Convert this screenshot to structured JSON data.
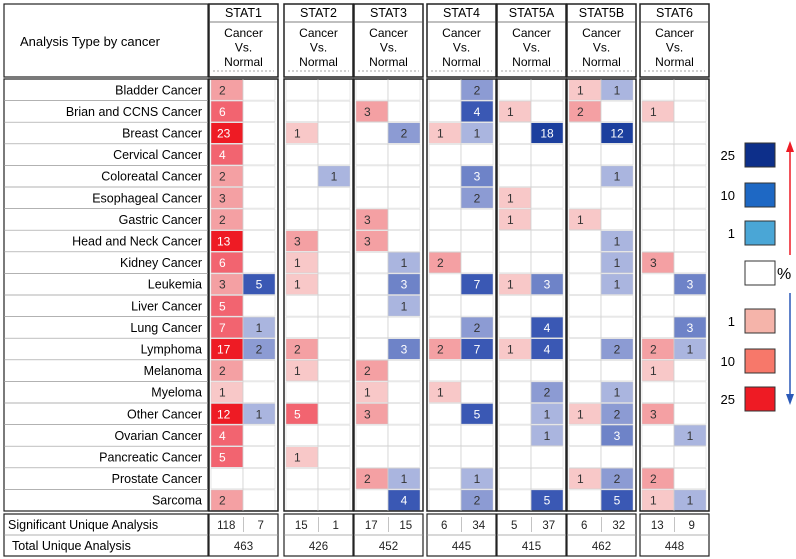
{
  "header": {
    "title": "Analysis Type by cancer",
    "sub_label": "Cancer\nVs.\nNormal"
  },
  "chart_data": {
    "type": "heatmap",
    "genes": [
      "STAT1",
      "STAT2",
      "STAT3",
      "STAT4",
      "STAT5A",
      "STAT5B",
      "STAT6"
    ],
    "cancers": [
      "Bladder Cancer",
      "Brian and CCNS Cancer",
      "Breast Cancer",
      "Cervical Cancer",
      "Coloreatal Cancer",
      "Esophageal Cancer",
      "Gastric Cancer",
      "Head and Neck Cancer",
      "Kidney Cancer",
      "Leukemia",
      "Liver Cancer",
      "Lung Cancer",
      "Lymphoma",
      "Melanoma",
      "Myeloma",
      "Other Cancer",
      "Ovarian Cancer",
      "Pancreatic Cancer",
      "Prostate Cancer",
      "Sarcoma"
    ],
    "up_counts": [
      [
        2,
        null,
        null,
        null,
        null,
        1,
        null
      ],
      [
        6,
        null,
        3,
        null,
        1,
        2,
        1
      ],
      [
        23,
        1,
        null,
        1,
        null,
        null,
        null
      ],
      [
        4,
        null,
        null,
        null,
        null,
        null,
        null
      ],
      [
        2,
        null,
        null,
        null,
        null,
        null,
        null
      ],
      [
        3,
        null,
        null,
        null,
        1,
        null,
        null
      ],
      [
        2,
        null,
        3,
        null,
        1,
        1,
        null
      ],
      [
        13,
        3,
        3,
        null,
        null,
        null,
        null
      ],
      [
        6,
        1,
        null,
        2,
        null,
        null,
        3
      ],
      [
        3,
        1,
        null,
        null,
        1,
        null,
        null
      ],
      [
        5,
        null,
        null,
        null,
        null,
        null,
        null
      ],
      [
        7,
        null,
        null,
        null,
        null,
        null,
        null
      ],
      [
        17,
        2,
        null,
        2,
        1,
        null,
        2
      ],
      [
        2,
        1,
        2,
        null,
        null,
        null,
        1
      ],
      [
        1,
        null,
        1,
        1,
        null,
        null,
        null
      ],
      [
        12,
        5,
        3,
        null,
        null,
        1,
        3
      ],
      [
        4,
        null,
        null,
        null,
        null,
        null,
        null
      ],
      [
        5,
        1,
        null,
        null,
        null,
        null,
        null
      ],
      [
        null,
        null,
        2,
        null,
        null,
        1,
        2
      ],
      [
        2,
        null,
        null,
        null,
        null,
        null,
        1
      ]
    ],
    "down_counts": [
      [
        null,
        null,
        null,
        2,
        null,
        1,
        null
      ],
      [
        null,
        null,
        null,
        4,
        null,
        null,
        null
      ],
      [
        null,
        null,
        2,
        1,
        18,
        12,
        null
      ],
      [
        null,
        null,
        null,
        null,
        null,
        null,
        null
      ],
      [
        null,
        1,
        null,
        3,
        null,
        1,
        null
      ],
      [
        null,
        null,
        null,
        2,
        null,
        null,
        null
      ],
      [
        null,
        null,
        null,
        null,
        null,
        null,
        null
      ],
      [
        null,
        null,
        null,
        null,
        null,
        1,
        null
      ],
      [
        null,
        null,
        1,
        null,
        null,
        1,
        null
      ],
      [
        5,
        null,
        3,
        7,
        3,
        1,
        3
      ],
      [
        null,
        null,
        1,
        null,
        null,
        null,
        null
      ],
      [
        1,
        null,
        null,
        2,
        4,
        null,
        3
      ],
      [
        2,
        null,
        3,
        7,
        4,
        2,
        1
      ],
      [
        null,
        null,
        null,
        null,
        null,
        null,
        null
      ],
      [
        null,
        null,
        null,
        null,
        2,
        1,
        null
      ],
      [
        1,
        null,
        null,
        5,
        1,
        2,
        null
      ],
      [
        null,
        null,
        null,
        null,
        1,
        3,
        1
      ],
      [
        null,
        null,
        null,
        null,
        null,
        null,
        null
      ],
      [
        null,
        null,
        1,
        1,
        null,
        2,
        null
      ],
      [
        null,
        null,
        4,
        2,
        5,
        5,
        1
      ]
    ],
    "red_edge_rows": [
      [
        0,
        0,
        1,
        1,
        0,
        0,
        1,
        0,
        0,
        0,
        1,
        0,
        0,
        0,
        0,
        0,
        0,
        0,
        0,
        0
      ],
      [
        0,
        0,
        0,
        0,
        0,
        0,
        0,
        0,
        0,
        0,
        0,
        0,
        0,
        0,
        0,
        0,
        0,
        0,
        0,
        0
      ],
      [
        0,
        0,
        0,
        0,
        0,
        0,
        0,
        0,
        0,
        0,
        0,
        0,
        0,
        0,
        0,
        0,
        0,
        0,
        0,
        0
      ],
      [
        0,
        0,
        0,
        0,
        0,
        0,
        0,
        0,
        0,
        0,
        0,
        0,
        0,
        0,
        0,
        0,
        0,
        0,
        0,
        0
      ],
      [
        0,
        0,
        0,
        0,
        0,
        0,
        0,
        0,
        0,
        0,
        0,
        0,
        0,
        0,
        0,
        0,
        0,
        0,
        0,
        0
      ],
      [
        0,
        0,
        0,
        0,
        0,
        0,
        0,
        0,
        0,
        0,
        0,
        0,
        0,
        0,
        0,
        0,
        0,
        0,
        0,
        0
      ],
      [
        0,
        0,
        0,
        0,
        0,
        0,
        0,
        0,
        0,
        0,
        0,
        0,
        0,
        0,
        0,
        0,
        0,
        0,
        0,
        0
      ]
    ],
    "significant_unique_label": "Significant Unique Analysis",
    "total_unique_label": "Total Unique Analysis",
    "significant_unique": [
      [
        118,
        7
      ],
      [
        15,
        1
      ],
      [
        17,
        15
      ],
      [
        6,
        34
      ],
      [
        5,
        37
      ],
      [
        6,
        32
      ],
      [
        13,
        9
      ]
    ],
    "total_unique": [
      463,
      426,
      452,
      445,
      415,
      462,
      448
    ],
    "legend": {
      "levels": [
        "25",
        "10",
        "1",
        "1",
        "10",
        "25"
      ],
      "percent_symbol": "%",
      "blue_colors": [
        "#0d2f8a",
        "#1e68c4",
        "#4aa6d6"
      ],
      "red_colors": [
        "#f5b4aa",
        "#f7786a",
        "#ee1b24"
      ],
      "arrow_up_color": "#ee1b24",
      "arrow_down_color": "#2a59b8"
    }
  }
}
